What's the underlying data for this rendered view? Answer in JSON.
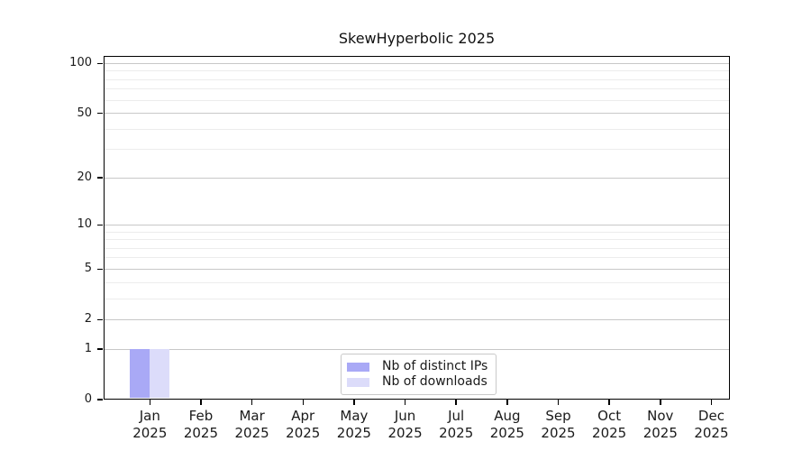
{
  "figure": {
    "background": "#ffffff",
    "spine_color": "#000000",
    "major_grid_color": "#c8c8c8",
    "minor_grid_color": "#ececec",
    "text_color": "#1a1a1a"
  },
  "chart_data": {
    "type": "bar",
    "title": "SkewHyperbolic 2025",
    "xlabel": "",
    "ylabel": "",
    "y_scale": "log1p",
    "ylim": [
      0,
      111
    ],
    "grid": true,
    "legend_position": "bottom-center",
    "categories": [
      {
        "line1": "Jan",
        "line2": "2025"
      },
      {
        "line1": "Feb",
        "line2": "2025"
      },
      {
        "line1": "Mar",
        "line2": "2025"
      },
      {
        "line1": "Apr",
        "line2": "2025"
      },
      {
        "line1": "May",
        "line2": "2025"
      },
      {
        "line1": "Jun",
        "line2": "2025"
      },
      {
        "line1": "Jul",
        "line2": "2025"
      },
      {
        "line1": "Aug",
        "line2": "2025"
      },
      {
        "line1": "Sep",
        "line2": "2025"
      },
      {
        "line1": "Oct",
        "line2": "2025"
      },
      {
        "line1": "Nov",
        "line2": "2025"
      },
      {
        "line1": "Dec",
        "line2": "2025"
      }
    ],
    "series": [
      {
        "name": "Nb of distinct IPs",
        "color": "#a9a9f6",
        "values": [
          1,
          0,
          0,
          0,
          0,
          0,
          0,
          0,
          0,
          0,
          0,
          0
        ]
      },
      {
        "name": "Nb of downloads",
        "color": "#dcdcfa",
        "values": [
          1,
          0,
          0,
          0,
          0,
          0,
          0,
          0,
          0,
          0,
          0,
          0
        ]
      }
    ],
    "y_major_ticks": [
      0,
      1,
      2,
      5,
      10,
      20,
      50,
      100
    ],
    "y_minor_gridlines": [
      3,
      4,
      6,
      7,
      8,
      9,
      30,
      40,
      60,
      70,
      80,
      90
    ]
  }
}
